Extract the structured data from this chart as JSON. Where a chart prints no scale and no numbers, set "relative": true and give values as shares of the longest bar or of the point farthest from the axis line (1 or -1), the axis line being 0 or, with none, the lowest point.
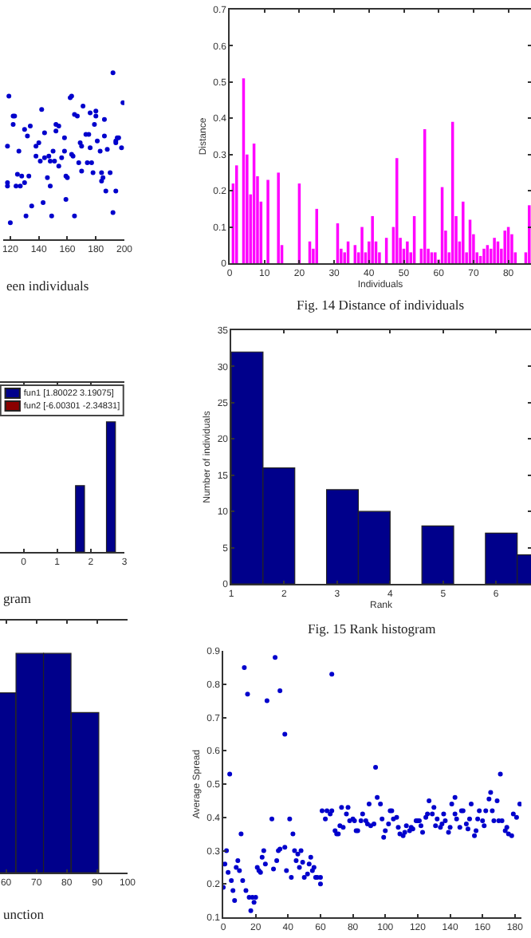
{
  "chart_data": [
    {
      "type": "scatter",
      "relative": true,
      "color": "#0000cc",
      "marker": "circle",
      "xlim": [
        115,
        200
      ],
      "xticks": [
        120,
        140,
        160,
        180,
        200
      ],
      "annotations": [
        "een individuals"
      ],
      "x": [
        119,
        122,
        123,
        122,
        118,
        126,
        130,
        134,
        132,
        138,
        140,
        142,
        144,
        152,
        154,
        152,
        158,
        162,
        163,
        165,
        167,
        171,
        173,
        175,
        176,
        180,
        180,
        186,
        179,
        181,
        186,
        192,
        199,
        195,
        196,
        194,
        198,
        194,
        188,
        183,
        176,
        169,
        170,
        163,
        158,
        156,
        150,
        147,
        148,
        138,
        141,
        144,
        118,
        125,
        128,
        133,
        127,
        130,
        124,
        118,
        146,
        148,
        159,
        160,
        168,
        170,
        174,
        177,
        178,
        184,
        185,
        184,
        190,
        187,
        194,
        135,
        143,
        131,
        149,
        159,
        165,
        192,
        120,
        164,
        154,
        151
      ],
      "values": [
        0.86,
        0.74,
        0.74,
        0.69,
        0.56,
        0.53,
        0.66,
        0.68,
        0.62,
        0.56,
        0.58,
        0.78,
        0.64,
        0.69,
        0.68,
        0.65,
        0.61,
        0.85,
        0.86,
        0.75,
        0.74,
        0.8,
        0.63,
        0.63,
        0.76,
        0.77,
        0.74,
        0.72,
        0.69,
        0.59,
        0.62,
        1.0,
        0.82,
        0.61,
        0.61,
        0.59,
        0.55,
        0.58,
        0.54,
        0.53,
        0.55,
        0.58,
        0.56,
        0.51,
        0.53,
        0.49,
        0.53,
        0.5,
        0.47,
        0.5,
        0.47,
        0.49,
        0.34,
        0.39,
        0.38,
        0.38,
        0.32,
        0.34,
        0.32,
        0.32,
        0.37,
        0.32,
        0.38,
        0.37,
        0.46,
        0.41,
        0.46,
        0.46,
        0.4,
        0.4,
        0.37,
        0.35,
        0.4,
        0.29,
        0.29,
        0.2,
        0.22,
        0.14,
        0.14,
        0.24,
        0.14,
        0.16,
        0.1,
        0.5,
        0.44,
        0.47
      ]
    },
    {
      "type": "bar",
      "color": "#ff00ff",
      "xlim": [
        0,
        86.5
      ],
      "xticks": [
        0,
        10,
        20,
        30,
        40,
        50,
        60,
        70,
        80
      ],
      "ylim": [
        0,
        0.7
      ],
      "yticks": [
        0,
        0.1,
        0.2,
        0.3,
        0.4,
        0.5,
        0.6,
        0.7
      ],
      "xlabel": "Individuals",
      "ylabel": "Distance",
      "annotations": [
        "Fig. 14 Distance of individuals"
      ],
      "x": [
        1,
        2,
        4,
        5,
        6,
        7,
        8,
        9,
        11,
        14,
        15,
        20,
        23,
        24,
        25,
        31,
        32,
        33,
        34,
        36,
        37,
        38,
        39,
        40,
        41,
        42,
        43,
        45,
        47,
        48,
        49,
        50,
        51,
        52,
        53,
        55,
        56,
        57,
        58,
        59,
        60,
        61,
        62,
        63,
        64,
        65,
        66,
        67,
        68,
        69,
        70,
        71,
        72,
        73,
        74,
        75,
        76,
        77,
        78,
        79,
        80,
        81,
        82,
        85,
        86
      ],
      "values": [
        0.22,
        0.27,
        0.51,
        0.3,
        0.19,
        0.33,
        0.24,
        0.17,
        0.23,
        0.25,
        0.05,
        0.22,
        0.06,
        0.04,
        0.15,
        0.11,
        0.04,
        0.03,
        0.06,
        0.05,
        0.03,
        0.1,
        0.03,
        0.06,
        0.13,
        0.06,
        0.03,
        0.07,
        0.1,
        0.29,
        0.07,
        0.04,
        0.06,
        0.03,
        0.13,
        0.04,
        0.37,
        0.04,
        0.03,
        0.03,
        0.01,
        0.21,
        0.09,
        0.03,
        0.39,
        0.13,
        0.06,
        0.17,
        0.03,
        0.12,
        0.08,
        0.03,
        0.02,
        0.04,
        0.05,
        0.04,
        0.07,
        0.06,
        0.04,
        0.09,
        0.1,
        0.08,
        0.03,
        0.03,
        0.16
      ]
    },
    {
      "type": "bar",
      "relative": true,
      "legend": "top",
      "xlim": [
        -0.7,
        3
      ],
      "xticks": [
        0,
        1,
        2,
        3
      ],
      "annotations": [
        "gram"
      ],
      "x": [
        1.68,
        2.6
      ],
      "series": [
        {
          "name": "fun1 [1.80022 3.19075]",
          "color": "#00008b",
          "values": [
            0.51,
            1
          ]
        },
        {
          "name": "fun2 [-6.00301 -2.34831]",
          "color": "#8b0000",
          "values": [
            null,
            null
          ]
        }
      ]
    },
    {
      "type": "histogram",
      "color": "#00008b",
      "xlim": [
        1,
        6.66
      ],
      "xticks": [
        1,
        2,
        3,
        4,
        5,
        6
      ],
      "ylim": [
        0,
        35
      ],
      "yticks": [
        0,
        5,
        10,
        15,
        20,
        25,
        30,
        35
      ],
      "xlabel": "Rank",
      "ylabel": "Number of individuals",
      "annotations": [
        "Fig. 15 Rank histogram"
      ],
      "bins": [
        1,
        1.6,
        2.2,
        2.8,
        3.4,
        4.0,
        4.6,
        5.2,
        5.8,
        6.4,
        7.0
      ],
      "values": [
        32,
        16,
        0,
        13,
        10,
        0,
        8,
        0,
        7,
        4
      ]
    },
    {
      "type": "bar",
      "relative": true,
      "color": "#00008b",
      "xlim": [
        58,
        100
      ],
      "xticks": [
        60,
        70,
        80,
        90,
        100
      ],
      "annotations": [
        "unction"
      ],
      "x": [
        58.65,
        67.8,
        76.85,
        86
      ],
      "values": [
        0.82,
        1,
        1,
        0.73
      ]
    },
    {
      "type": "scatter",
      "color": "#0000cc",
      "marker": "circle",
      "xlim": [
        0,
        184
      ],
      "xticks": [
        0,
        20,
        40,
        60,
        80,
        100,
        120,
        140,
        160,
        180
      ],
      "ylim": [
        0.1,
        0.9
      ],
      "yticks": [
        0.1,
        0.2,
        0.3,
        0.4,
        0.5,
        0.6,
        0.7,
        0.8,
        0.9
      ],
      "ylabel": "Average Spread",
      "x": [
        0,
        2,
        1,
        3,
        4,
        5,
        6,
        7,
        8,
        9,
        10,
        11,
        12,
        13,
        14,
        15,
        16,
        17,
        18,
        19,
        20,
        21,
        22,
        23,
        24,
        25,
        26,
        27,
        32,
        35,
        38,
        30,
        31,
        33,
        34,
        35,
        38,
        39,
        41,
        42,
        43,
        44,
        45,
        46,
        47,
        48,
        49,
        50,
        52,
        53,
        54,
        55,
        56,
        57,
        58,
        60,
        60,
        61,
        63,
        64,
        66,
        67,
        67,
        69,
        70,
        71,
        72,
        73,
        74,
        76,
        77,
        78,
        80,
        81,
        82,
        83,
        85,
        86,
        88,
        89,
        90,
        91,
        93,
        94,
        95,
        97,
        98,
        99,
        100,
        102,
        103,
        104,
        105,
        107,
        108,
        109,
        111,
        112,
        113,
        115,
        116,
        117,
        119,
        120,
        121,
        122,
        123,
        125,
        126,
        127,
        129,
        130,
        131,
        132,
        134,
        135,
        136,
        137,
        139,
        140,
        141,
        143,
        143,
        144,
        146,
        147,
        148,
        150,
        151,
        152,
        153,
        155,
        156,
        157,
        158,
        160,
        161,
        162,
        164,
        165,
        166,
        167,
        169,
        170,
        171,
        172,
        174,
        175,
        176,
        178,
        179,
        181,
        183
      ],
      "values": [
        0.19,
        0.3,
        0.26,
        0.235,
        0.53,
        0.21,
        0.18,
        0.15,
        0.25,
        0.27,
        0.24,
        0.35,
        0.21,
        0.85,
        0.18,
        0.77,
        0.16,
        0.12,
        0.16,
        0.145,
        0.16,
        0.25,
        0.24,
        0.235,
        0.28,
        0.3,
        0.26,
        0.75,
        0.88,
        0.78,
        0.65,
        0.395,
        0.245,
        0.27,
        0.3,
        0.305,
        0.31,
        0.24,
        0.395,
        0.22,
        0.35,
        0.3,
        0.27,
        0.29,
        0.25,
        0.3,
        0.265,
        0.22,
        0.23,
        0.26,
        0.28,
        0.24,
        0.25,
        0.22,
        0.22,
        0.2,
        0.22,
        0.42,
        0.395,
        0.42,
        0.41,
        0.83,
        0.42,
        0.36,
        0.35,
        0.35,
        0.375,
        0.43,
        0.37,
        0.41,
        0.43,
        0.39,
        0.395,
        0.39,
        0.36,
        0.36,
        0.39,
        0.41,
        0.39,
        0.38,
        0.44,
        0.375,
        0.38,
        0.55,
        0.46,
        0.44,
        0.395,
        0.34,
        0.36,
        0.38,
        0.42,
        0.42,
        0.395,
        0.4,
        0.37,
        0.35,
        0.345,
        0.355,
        0.375,
        0.36,
        0.37,
        0.365,
        0.39,
        0.39,
        0.39,
        0.375,
        0.355,
        0.4,
        0.41,
        0.45,
        0.41,
        0.43,
        0.375,
        0.395,
        0.37,
        0.38,
        0.41,
        0.39,
        0.355,
        0.37,
        0.44,
        0.41,
        0.46,
        0.395,
        0.37,
        0.42,
        0.42,
        0.38,
        0.365,
        0.395,
        0.44,
        0.345,
        0.36,
        0.395,
        0.42,
        0.39,
        0.375,
        0.42,
        0.455,
        0.475,
        0.42,
        0.39,
        0.45,
        0.39,
        0.53,
        0.39,
        0.36,
        0.37,
        0.35,
        0.345,
        0.41,
        0.4,
        0.44
      ]
    }
  ]
}
